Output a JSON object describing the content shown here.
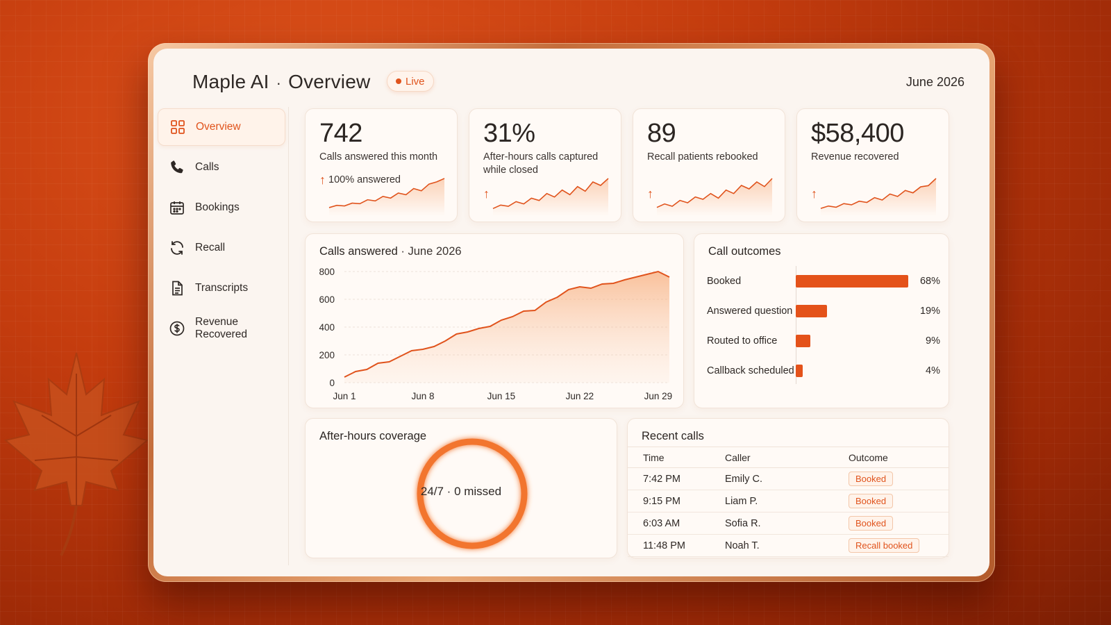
{
  "header": {
    "app_name": "Maple AI",
    "separator": "·",
    "page": "Overview",
    "live_label": "Live",
    "date": "June 2026"
  },
  "sidebar": {
    "items": [
      {
        "label": "Overview",
        "icon": "grid-icon",
        "active": true
      },
      {
        "label": "Calls",
        "icon": "phone-icon"
      },
      {
        "label": "Bookings",
        "icon": "calendar-icon"
      },
      {
        "label": "Recall",
        "icon": "refresh-icon"
      },
      {
        "label": "Transcripts",
        "icon": "document-icon"
      },
      {
        "label": "Revenue Recovered",
        "icon": "dollar-icon"
      }
    ]
  },
  "kpis": [
    {
      "value": "742",
      "label": "Calls answered this month",
      "sub": "100% answered",
      "trend": [
        10,
        14,
        13,
        18,
        17,
        24,
        22,
        30,
        27,
        36,
        33,
        44,
        40,
        52,
        56,
        62
      ]
    },
    {
      "value": "31%",
      "label": "After-hours calls captured while closed",
      "sub": "",
      "trend": [
        8,
        14,
        12,
        20,
        16,
        26,
        22,
        34,
        28,
        40,
        32,
        46,
        38,
        54,
        48,
        60
      ]
    },
    {
      "value": "89",
      "label": "Recall patients rebooked",
      "sub": "",
      "trend": [
        10,
        16,
        12,
        22,
        18,
        28,
        24,
        34,
        26,
        40,
        34,
        48,
        42,
        54,
        46,
        60
      ]
    },
    {
      "value": "$58,400",
      "label": "Revenue recovered",
      "sub": "",
      "trend": [
        8,
        12,
        10,
        16,
        14,
        20,
        18,
        26,
        22,
        32,
        28,
        38,
        34,
        44,
        46,
        58
      ]
    }
  ],
  "calls_chart": {
    "title": "Calls answered",
    "title_suffix": "· June 2026",
    "chart_data": {
      "type": "area",
      "x_labels": [
        "Jun 1",
        "Jun 8",
        "Jun 15",
        "Jun 22",
        "Jun 29"
      ],
      "x": [
        1,
        2,
        3,
        4,
        5,
        6,
        7,
        8,
        9,
        10,
        11,
        12,
        13,
        14,
        15,
        16,
        17,
        18,
        19,
        20,
        21,
        22,
        23,
        24,
        25,
        26,
        27,
        28,
        29,
        30
      ],
      "values": [
        40,
        80,
        95,
        140,
        150,
        190,
        230,
        240,
        260,
        300,
        350,
        365,
        390,
        405,
        450,
        475,
        515,
        520,
        580,
        615,
        670,
        690,
        680,
        710,
        715,
        740,
        760,
        780,
        800,
        760
      ],
      "ylim": [
        0,
        800
      ],
      "y_ticks": [
        "0",
        "200",
        "400",
        "600",
        "800"
      ],
      "grid": true
    }
  },
  "outcomes": {
    "title": "Call outcomes",
    "chart_data": {
      "type": "bar",
      "categories": [
        "Booked",
        "Answered question",
        "Routed to office",
        "Callback scheduled"
      ],
      "values": [
        68,
        19,
        9,
        4
      ],
      "labels": [
        "68%",
        "19%",
        "9%",
        "4%"
      ]
    }
  },
  "coverage": {
    "title": "After-hours coverage",
    "ring_text": "24/7 · 0 missed"
  },
  "recent_calls": {
    "title": "Recent calls",
    "columns": [
      "Time",
      "Caller",
      "Outcome"
    ],
    "rows": [
      {
        "time": "7:42 PM",
        "caller": "Emily C.",
        "outcome": "Booked"
      },
      {
        "time": "9:15 PM",
        "caller": "Liam P.",
        "outcome": "Booked"
      },
      {
        "time": "6:03 AM",
        "caller": "Sofia R.",
        "outcome": "Booked"
      },
      {
        "time": "11:48 PM",
        "caller": "Noah T.",
        "outcome": "Recall booked"
      }
    ]
  },
  "colors": {
    "accent": "#e0531c",
    "accent_light": "#f6b48a",
    "background": "#c43c0e"
  }
}
